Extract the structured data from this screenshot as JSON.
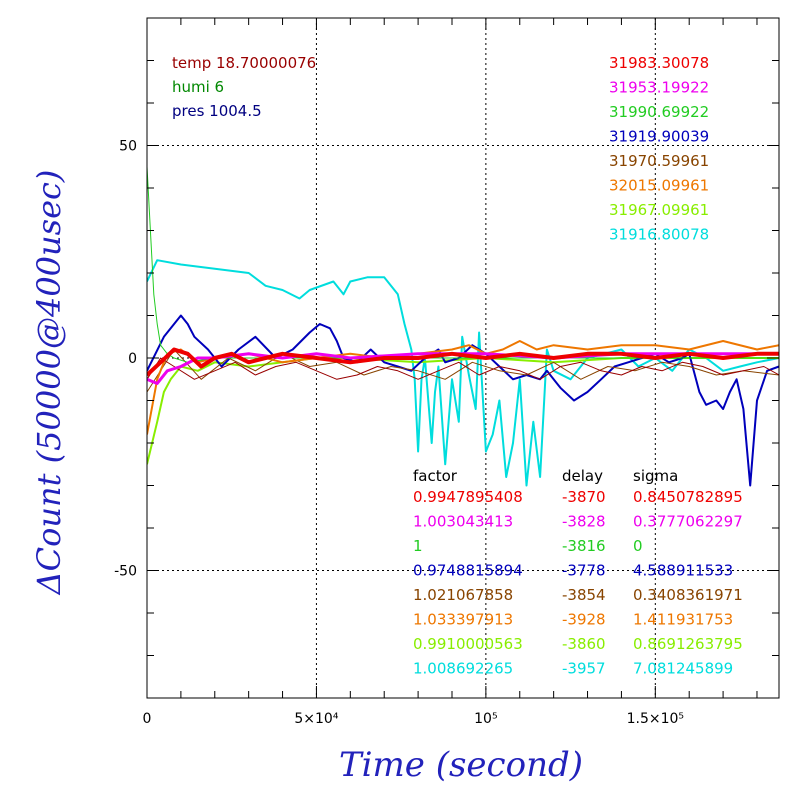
{
  "chart_data": {
    "type": "line",
    "title": "",
    "xlabel": "Time (second)",
    "ylabel": "ΔCount (50000@400usec)",
    "xlim": [
      0,
      186500
    ],
    "ylim": [
      -80,
      80
    ],
    "grid": true,
    "x_major_ticks": [
      {
        "value": 0,
        "label": "0"
      },
      {
        "value": 50000,
        "label": "5×10⁴"
      },
      {
        "value": 100000,
        "label": "10⁵"
      },
      {
        "value": 150000,
        "label": "1.5×10⁵"
      }
    ],
    "y_major_ticks": [
      {
        "value": 50,
        "label": "50"
      },
      {
        "value": 0,
        "label": "0"
      },
      {
        "value": -50,
        "label": "-50"
      }
    ],
    "env_labels": [
      {
        "text": "temp 18.70000076",
        "color": "#990000"
      },
      {
        "text": "humi 6",
        "color": "#008800"
      },
      {
        "text": "pres 1004.5",
        "color": "#000080"
      }
    ],
    "count_labels": [
      {
        "text": "31983.30078",
        "color": "#ee0000"
      },
      {
        "text": "31953.19922",
        "color": "#ee00ee"
      },
      {
        "text": "31990.69922",
        "color": "#22cc22"
      },
      {
        "text": "31919.90039",
        "color": "#0000bb"
      },
      {
        "text": "31970.59961",
        "color": "#884400"
      },
      {
        "text": "32015.09961",
        "color": "#ee7700"
      },
      {
        "text": "31967.09961",
        "color": "#88ee00"
      },
      {
        "text": "31916.80078",
        "color": "#00dddd"
      }
    ],
    "table": {
      "headers": [
        "factor",
        "delay",
        "sigma"
      ],
      "rows": [
        {
          "factor": "0.9947895408",
          "delay": "-3870",
          "sigma": "0.8450782895",
          "color": "#ee0000"
        },
        {
          "factor": "1.003043413",
          "delay": "-3828",
          "sigma": "0.3777062297",
          "color": "#ee00ee"
        },
        {
          "factor": "1",
          "delay": "-3816",
          "sigma": "0",
          "color": "#22cc22"
        },
        {
          "factor": "0.9748815894",
          "delay": "-3778",
          "sigma": "4.588911533",
          "color": "#0000bb"
        },
        {
          "factor": "1.021067858",
          "delay": "-3854",
          "sigma": "0.3408361971",
          "color": "#884400"
        },
        {
          "factor": "1.033397913",
          "delay": "-3928",
          "sigma": "1.411931753",
          "color": "#ee7700"
        },
        {
          "factor": "0.9910000563",
          "delay": "-3860",
          "sigma": "0.8691263795",
          "color": "#88ee00"
        },
        {
          "factor": "1.008692265",
          "delay": "-3957",
          "sigma": "7.081245899",
          "color": "#00dddd"
        }
      ]
    },
    "series": [
      {
        "color": "#00dddd",
        "width": 2,
        "x": [
          0,
          3000,
          10000,
          20000,
          30000,
          35000,
          40000,
          45000,
          48000,
          55000,
          58000,
          60000,
          65000,
          70000,
          74000,
          76000,
          78000,
          79000,
          80000,
          81000,
          82000,
          84000,
          85000,
          86000,
          88000,
          90000,
          92000,
          93000,
          95000,
          97000,
          98000,
          100000,
          102000,
          104000,
          106000,
          108000,
          110000,
          112000,
          114000,
          116000,
          118000,
          120000,
          125000,
          130000,
          135000,
          140000,
          145000,
          150000,
          155000,
          160000,
          165000,
          170000,
          175000,
          180000,
          186500
        ],
        "y": [
          18,
          23,
          22,
          21,
          20,
          17,
          16,
          14,
          16,
          18,
          15,
          18,
          19,
          19,
          15,
          8,
          2,
          -5,
          -22,
          -5,
          0,
          -20,
          -8,
          -2,
          -25,
          -5,
          -15,
          5,
          -4,
          -12,
          6,
          -22,
          -18,
          -10,
          -28,
          -20,
          -5,
          -30,
          -15,
          -28,
          2,
          -3,
          -5,
          0,
          1,
          2,
          -2,
          0,
          -3,
          2,
          0,
          -3,
          -2,
          -1,
          0
        ]
      },
      {
        "color": "#88ee00",
        "width": 2,
        "x": [
          0,
          3000,
          5000,
          7000,
          10000,
          15000,
          20000,
          30000,
          40000,
          50000,
          60000,
          80000,
          100000,
          120000,
          140000,
          160000,
          186500
        ],
        "y": [
          -25,
          -15,
          -8,
          -5,
          -2,
          -3,
          -1,
          -2,
          -1,
          0,
          0,
          -1,
          0,
          -1,
          0,
          0,
          0
        ]
      },
      {
        "color": "#0000bb",
        "width": 2,
        "x": [
          0,
          5000,
          8000,
          10000,
          12000,
          14000,
          18000,
          22000,
          27000,
          32000,
          38000,
          43000,
          48000,
          51000,
          54000,
          56000,
          58000,
          62000,
          66000,
          70000,
          74000,
          78000,
          82000,
          86000,
          88000,
          92000,
          96000,
          100000,
          104000,
          108000,
          112000,
          116000,
          118000,
          122000,
          126000,
          130000,
          134000,
          138000,
          142000,
          146000,
          150000,
          154000,
          158000,
          160000,
          163000,
          165000,
          168000,
          170000,
          172000,
          174000,
          176000,
          178000,
          180000,
          183000,
          186500
        ],
        "y": [
          -3,
          5,
          8,
          10,
          8,
          5,
          2,
          -2,
          2,
          5,
          0,
          2,
          6,
          8,
          7,
          4,
          0,
          -1,
          2,
          -1,
          -2,
          -3,
          0,
          2,
          -1,
          0,
          3,
          1,
          -2,
          -5,
          -4,
          -5,
          -3,
          -7,
          -10,
          -8,
          -5,
          -2,
          -1,
          0,
          1,
          -1,
          0,
          1,
          -8,
          -11,
          -10,
          -12,
          -8,
          -5,
          -12,
          -30,
          -10,
          -3,
          -2
        ]
      },
      {
        "color": "#884400",
        "width": 1,
        "x": [
          0,
          8000,
          16000,
          24000,
          32000,
          40000,
          48000,
          56000,
          64000,
          72000,
          80000,
          88000,
          96000,
          104000,
          112000,
          120000,
          128000,
          136000,
          144000,
          152000,
          160000,
          168000,
          176000,
          186500
        ],
        "y": [
          -8,
          2,
          -5,
          0,
          -3,
          1,
          -2,
          -1,
          -4,
          -2,
          -3,
          -5,
          -1,
          -3,
          -4,
          -1,
          -5,
          -2,
          -3,
          -1,
          -2,
          -4,
          -3,
          -4
        ]
      },
      {
        "color": "#ee7700",
        "width": 2,
        "x": [
          0,
          3000,
          6000,
          10000,
          15000,
          20000,
          30000,
          40000,
          50000,
          60000,
          70000,
          80000,
          90000,
          95000,
          100000,
          105000,
          110000,
          115000,
          120000,
          130000,
          140000,
          150000,
          160000,
          170000,
          180000,
          186500
        ],
        "y": [
          -18,
          -5,
          1,
          2,
          -1,
          0,
          1,
          -1,
          0,
          1,
          0,
          1,
          2,
          3,
          1,
          2,
          4,
          2,
          3,
          2,
          3,
          3,
          2,
          4,
          2,
          3
        ]
      },
      {
        "color": "#22cc22",
        "width": 1,
        "x": [
          0,
          1000,
          2000,
          3000,
          4000,
          6000,
          8000,
          12000,
          20000,
          40000,
          60000,
          80000,
          100000,
          120000,
          140000,
          160000,
          186500
        ],
        "y": [
          45,
          30,
          15,
          8,
          3,
          1,
          0,
          -1,
          0,
          0,
          0,
          0,
          0,
          0,
          0,
          0,
          0
        ]
      },
      {
        "color": "#990000",
        "width": 1,
        "x": [
          0,
          4000,
          8000,
          14000,
          20000,
          26000,
          32000,
          38000,
          44000,
          50000,
          56000,
          62000,
          68000,
          74000,
          80000,
          86000,
          92000,
          98000,
          104000,
          110000,
          116000,
          122000,
          128000,
          134000,
          140000,
          146000,
          152000,
          158000,
          164000,
          170000,
          176000,
          182000,
          186500
        ],
        "y": [
          -5,
          0,
          -2,
          -5,
          -3,
          -1,
          -4,
          -2,
          -1,
          -3,
          -5,
          -4,
          -2,
          -3,
          -5,
          -3,
          -1,
          -4,
          -2,
          -3,
          -5,
          -2,
          -1,
          -3,
          -4,
          -2,
          -3,
          -1,
          -2,
          -4,
          -3,
          -2,
          -4
        ]
      },
      {
        "color": "#ee00ee",
        "width": 3,
        "x": [
          0,
          3000,
          6000,
          10000,
          15000,
          20000,
          30000,
          40000,
          50000,
          60000,
          80000,
          100000,
          120000,
          140000,
          160000,
          186500
        ],
        "y": [
          -5,
          -6,
          -3,
          -2,
          0,
          0,
          1,
          0,
          1,
          0,
          1,
          1,
          0,
          1,
          1,
          1
        ]
      },
      {
        "color": "#ee0000",
        "width": 4,
        "x": [
          0,
          4000,
          8000,
          12000,
          16000,
          20000,
          25000,
          30000,
          35000,
          40000,
          50000,
          60000,
          70000,
          80000,
          90000,
          100000,
          110000,
          120000,
          130000,
          140000,
          150000,
          160000,
          170000,
          180000,
          186500
        ],
        "y": [
          -4,
          -1,
          2,
          1,
          -2,
          0,
          1,
          -1,
          0,
          1,
          0,
          -1,
          0,
          0,
          1,
          0,
          1,
          0,
          1,
          1,
          0,
          1,
          0,
          1,
          1
        ]
      }
    ]
  }
}
